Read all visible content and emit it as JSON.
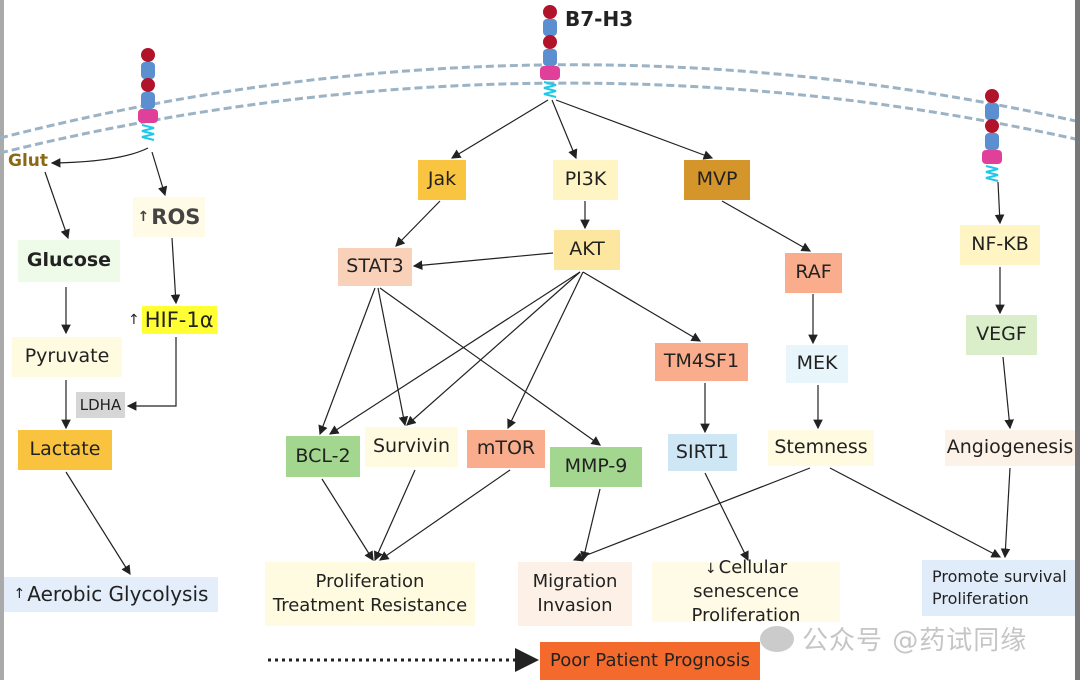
{
  "receptor_label": "B7-H3",
  "nodes": {
    "glut": "Glut",
    "ros": "ROS",
    "glucose": "Glucose",
    "hif": "HIF-1α",
    "pyruvate": "Pyruvate",
    "ldha": "LDHA",
    "lactate": "Lactate",
    "aerobic": "Aerobic Glycolysis",
    "jak": "Jak",
    "pi3k": "PI3K",
    "mvp": "MVP",
    "stat3": "STAT3",
    "akt": "AKT",
    "raf": "RAF",
    "nfkb": "NF-KB",
    "vegf": "VEGF",
    "tm4sf1": "TM4SF1",
    "mek": "MEK",
    "bcl2": "BCL-2",
    "survivin": "Survivin",
    "mtor": "mTOR",
    "mmp9": "MMP-9",
    "sirt1": "SIRT1",
    "stemness": "Stemness",
    "angiogenesis": "Angiogenesis",
    "prolif_line1": "Proliferation",
    "prolif_line2": "Treatment Resistance",
    "migration_line1": "Migration",
    "migration_line2": "Invasion",
    "senescence_line1": "Cellular senescence",
    "senescence_line2": "Proliferation",
    "survival_line1": "Promote survival",
    "survival_line2": "Proliferation",
    "prognosis": "Poor Patient Prognosis"
  },
  "up_arrow": "↑",
  "down_arrow": "↓",
  "watermark": "公众号 @药试同缘",
  "colors": {
    "membrane": "#9bb3c4",
    "receptor_ball": "#b0132a",
    "receptor_block": "#5b8fcf",
    "receptor_tm": "#e0409a",
    "receptor_coil": "#1ec8e8"
  }
}
